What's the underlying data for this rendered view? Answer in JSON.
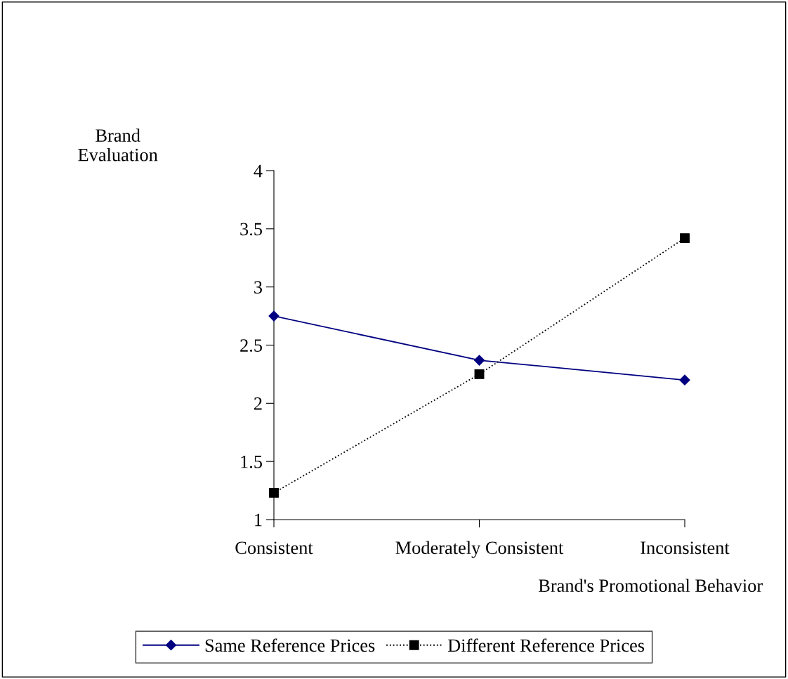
{
  "chart_data": {
    "type": "line",
    "ylabel": "Brand\nEvaluation",
    "xlabel": "Brand's Promotional Behavior",
    "categories": [
      "Consistent",
      "Moderately Consistent",
      "Inconsistent"
    ],
    "series": [
      {
        "name": "Same Reference Prices",
        "color": "#000080",
        "values": [
          2.75,
          2.37,
          2.2
        ],
        "marker": "diamond",
        "line_style": "solid"
      },
      {
        "name": "Different Reference Prices",
        "color": "#000000",
        "values": [
          1.23,
          2.25,
          3.42
        ],
        "marker": "square",
        "line_style": "dotted"
      }
    ],
    "ylim": [
      1,
      4
    ],
    "yticks": [
      1,
      1.5,
      2,
      2.5,
      3,
      3.5,
      4
    ],
    "grid": false,
    "legend": "bottom"
  }
}
